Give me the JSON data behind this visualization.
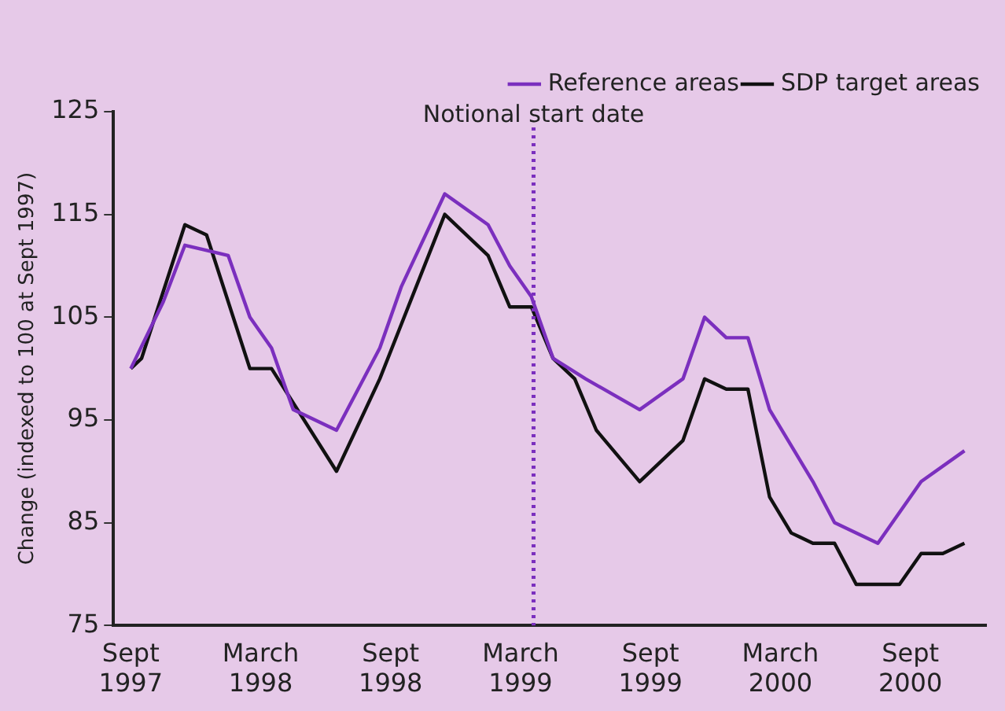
{
  "chart_data": {
    "type": "line",
    "ylabel": "Change (indexed to 100 at Sept 1997)",
    "xlim": [
      "1997-08-07",
      "2000-12-16"
    ],
    "ylim": [
      75,
      125
    ],
    "yticks": [
      75,
      85,
      95,
      105,
      115,
      125
    ],
    "xticks": [
      {
        "value": "1997-09",
        "label": "Sept 1997"
      },
      {
        "value": "1998-03",
        "label": "March 1998"
      },
      {
        "value": "1998-09",
        "label": "Sept 1998"
      },
      {
        "value": "1999-03",
        "label": "March 1999"
      },
      {
        "value": "1999-09",
        "label": "Sept 1999"
      },
      {
        "value": "2000-03",
        "label": "March 2000"
      },
      {
        "value": "2000-09",
        "label": "Sept 2000"
      }
    ],
    "grid": false,
    "legend": "top right",
    "marker": "none",
    "line_style": "solid",
    "ref_lines": [
      {
        "axis": "x",
        "value": "1999-03-19",
        "label": "Notional start date",
        "color": "#7b2fbe",
        "line_style": "dotted"
      }
    ],
    "series": [
      {
        "name": "Reference areas",
        "color": "#7b2fbe",
        "x": [
          "1997-09",
          "1997-10-16",
          "1997-11-16",
          "1998-01-16",
          "1998-02-16",
          "1998-03-16",
          "1998-04-16",
          "1998-06-16",
          "1998-08-16",
          "1998-09-16",
          "1998-11-16",
          "1999-01-16",
          "1999-02-16",
          "1999-03-16",
          "1999-04-16",
          "1999-06",
          "1999-08-16",
          "1999-10-16",
          "1999-11-16",
          "1999-12-16",
          "2000-01-16",
          "2000-02-16",
          "2000-04-16",
          "2000-05-16",
          "2000-07-16",
          "2000-09-16",
          "2000-11-16"
        ],
        "values": [
          100,
          106.5,
          112,
          111,
          105,
          102,
          96,
          94,
          102,
          108,
          117,
          114,
          110,
          107,
          101,
          99,
          96,
          99,
          105,
          103,
          103,
          96,
          89,
          85,
          83,
          89,
          92
        ]
      },
      {
        "name": "SDP target areas",
        "color": "#111111",
        "x": [
          "1997-09",
          "1997-09-16",
          "1997-11-16",
          "1997-12-16",
          "1998-02-16",
          "1998-03-16",
          "1998-06-16",
          "1998-08-16",
          "1998-11-16",
          "1999-01-16",
          "1999-02-16",
          "1999-03-16",
          "1999-04-16",
          "1999-05-16",
          "1999-06-16",
          "1999-08-16",
          "1999-10-16",
          "1999-11-16",
          "1999-12-16",
          "2000-01-16",
          "2000-02-16",
          "2000-03-16",
          "2000-04-16",
          "2000-05-16",
          "2000-06-16",
          "2000-08-16",
          "2000-09-16",
          "2000-10-16",
          "2000-11-16"
        ],
        "values": [
          100,
          101,
          114,
          113,
          100,
          100,
          90,
          99,
          115,
          111,
          106,
          106,
          101,
          99,
          94,
          89,
          93,
          99,
          98,
          98,
          87.5,
          84,
          83,
          83,
          79,
          79,
          82,
          82,
          83
        ]
      }
    ]
  }
}
